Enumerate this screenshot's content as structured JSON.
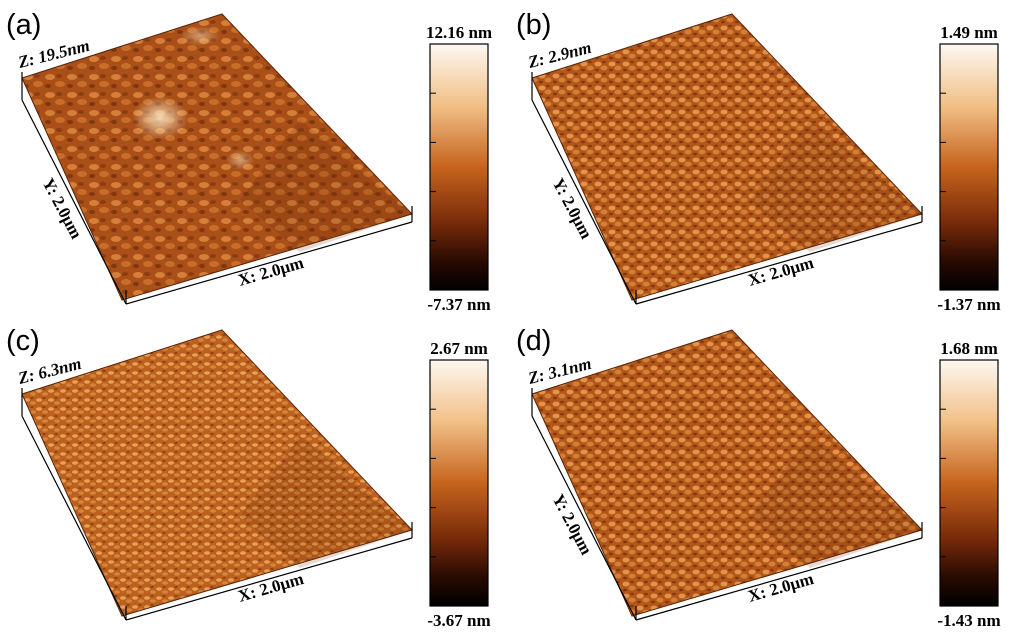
{
  "panels": [
    {
      "letter": "(a)",
      "z_label": "Z: 19.5nm",
      "y_label": "Y: 2.0μm",
      "x_label": "X: 2.0μm",
      "scale_max": "12.16 nm",
      "scale_min": "-7.37 nm"
    },
    {
      "letter": "(b)",
      "z_label": "Z: 2.9nm",
      "y_label": "Y: 2.0μm",
      "x_label": "X: 2.0μm",
      "scale_max": "1.49 nm",
      "scale_min": "-1.37 nm"
    },
    {
      "letter": "(c)",
      "z_label": "Z: 6.3nm",
      "y_label": "",
      "x_label": "X: 2.0μm",
      "scale_max": "2.67 nm",
      "scale_min": "-3.67 nm"
    },
    {
      "letter": "(d)",
      "z_label": "Z: 3.1nm",
      "y_label": "Y: 2.0μm",
      "x_label": "X: 2.0μm",
      "scale_max": "1.68 nm",
      "scale_min": "-1.43 nm"
    }
  ],
  "colors": {
    "surface_dark": "#7a3510",
    "surface_mid": "#b85a1c",
    "surface_light": "#e89a4a",
    "highlight": "#fbe7c4",
    "scale_top": "#fdf8f2",
    "scale_mid": "#c6641e",
    "scale_bottom": "#000000"
  }
}
